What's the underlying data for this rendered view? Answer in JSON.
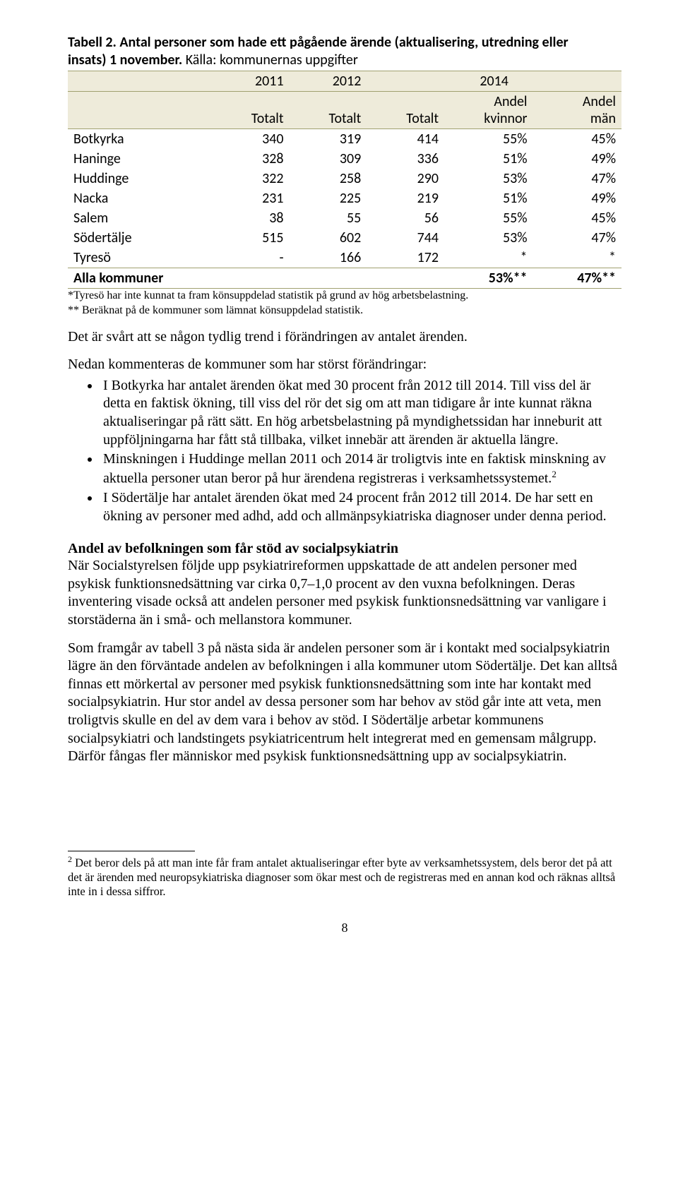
{
  "table": {
    "title_line1": "Tabell 2. Antal personer som hade ett pågående ärende (aktualisering, utredning eller",
    "title_line2": "insats) 1 november.",
    "title_line3": "Källa: kommunernas uppgifter",
    "years": [
      "2011",
      "2012",
      "2014"
    ],
    "header_row2": [
      "",
      "Totalt",
      "Totalt",
      "Totalt",
      "Andel",
      "Andel"
    ],
    "header_row3": [
      "",
      "",
      "",
      "",
      "kvinnor",
      "män"
    ],
    "rows": [
      {
        "name": "Botkyrka",
        "c": [
          "340",
          "319",
          "414",
          "55%",
          "45%"
        ]
      },
      {
        "name": "Haninge",
        "c": [
          "328",
          "309",
          "336",
          "51%",
          "49%"
        ]
      },
      {
        "name": "Huddinge",
        "c": [
          "322",
          "258",
          "290",
          "53%",
          "47%"
        ]
      },
      {
        "name": "Nacka",
        "c": [
          "231",
          "225",
          "219",
          "51%",
          "49%"
        ]
      },
      {
        "name": "Salem",
        "c": [
          "38",
          "55",
          "56",
          "55%",
          "45%"
        ]
      },
      {
        "name": "Södertälje",
        "c": [
          "515",
          "602",
          "744",
          "53%",
          "47%"
        ]
      },
      {
        "name": "Tyresö",
        "c": [
          "-",
          "166",
          "172",
          "*",
          "*"
        ]
      }
    ],
    "total": {
      "name": "Alla kommuner",
      "c": [
        "",
        "",
        "",
        "53%**",
        "47%**"
      ]
    },
    "footnote1": "*Tyresö har inte kunnat ta fram könsuppdelad statistik på grund av hög arbetsbelastning.",
    "footnote2": "** Beräknat på de kommuner som lämnat könsuppdelad statistik."
  },
  "para1": "Det är svårt att se någon tydlig trend i förändringen av antalet ärenden.",
  "para2_intro": "Nedan kommenteras de kommuner som har störst förändringar:",
  "bullets": [
    "I Botkyrka har antalet ärenden ökat med 30 procent från 2012 till 2014. Till viss del är detta en faktisk ökning, till viss del rör det sig om att man tidigare år inte kunnat räkna aktualiseringar på rätt sätt. En hög arbetsbelastning på myndighetssidan har inneburit att uppföljningarna har fått stå tillbaka, vilket innebär att ärenden är aktuella längre.",
    "Minskningen i Huddinge mellan 2011 och 2014 är troligtvis inte en faktisk minskning av aktuella personer utan beror på hur ärendena registreras i verksamhetssystemet.",
    "I Södertälje har antalet ärenden ökat med 24 procent från 2012 till 2014. De har sett en ökning av personer med adhd, add och allmänpsykiatriska diagnoser under denna period."
  ],
  "bullet2_sup": "2",
  "section_head": "Andel av befolkningen som får stöd av socialpsykiatrin",
  "para3": "När Socialstyrelsen följde upp psykiatrireformen uppskattade de att andelen personer med psykisk funktionsnedsättning var cirka 0,7–1,0 procent av den vuxna befolkningen. Deras inventering visade också att andelen personer med psykisk funktionsnedsättning var vanligare i storstäderna än i små- och mellanstora kommuner.",
  "para4": "Som framgår av tabell 3 på nästa sida är andelen personer som är i kontakt med socialpsykiatrin lägre än den förväntade andelen av befolkningen i alla kommuner utom Södertälje. Det kan alltså finnas ett mörkertal av personer med psykisk funktionsnedsättning som inte har kontakt med socialpsykiatrin. Hur stor andel av dessa personer som har behov av stöd går inte att veta, men troligtvis skulle en del av dem vara i behov av stöd. I Södertälje arbetar kommunens socialpsykiatri och landstingets psykiatricentrum helt integrerat med en gemensam målgrupp. Därför fångas fler människor med psykisk funktionsnedsättning upp av socialpsykiatrin.",
  "footnote_num": "2",
  "footnote_text": " Det beror dels på att man inte får fram antalet aktualiseringar efter byte av verksamhetssystem, dels beror det på att det är ärenden med neuropsykiatriska diagnoser som ökar mest och de registreras med en annan kod och räknas alltså inte in i dessa siffror.",
  "page_num": "8"
}
